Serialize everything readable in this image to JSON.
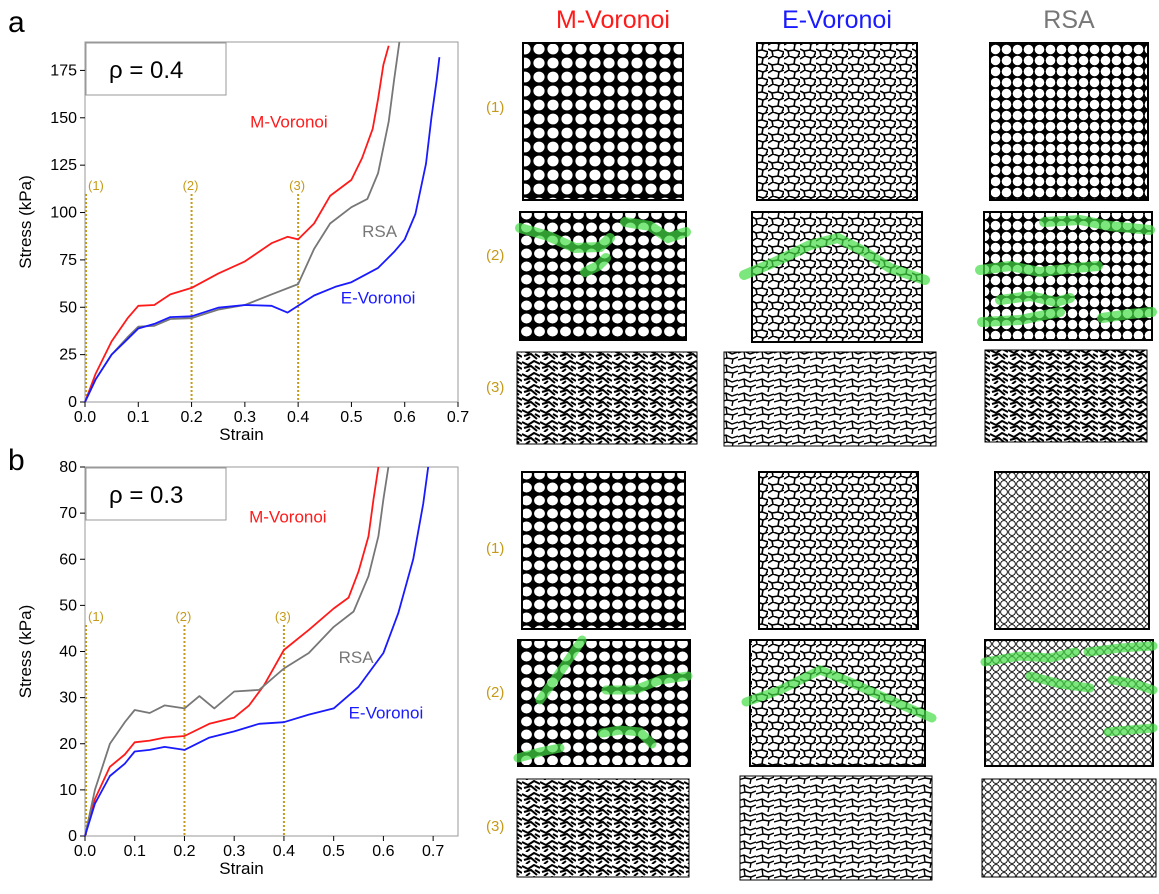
{
  "columns": [
    {
      "title": "M-Voronoi",
      "color": "#ff1a1a"
    },
    {
      "title": "E-Voronoi",
      "color": "#1a1aff"
    },
    {
      "title": "RSA",
      "color": "#777777"
    }
  ],
  "row_labels": [
    "(1)",
    "(2)",
    "(3)"
  ],
  "chart_data": [
    {
      "panel": "a",
      "type": "line",
      "annotation": "ρ = 0.4",
      "xlabel": "Strain",
      "ylabel": "Stress (kPa)",
      "xlim": [
        0,
        0.7
      ],
      "ylim": [
        0,
        190
      ],
      "xticks": [
        "0.0",
        "0.1",
        "0.2",
        "0.3",
        "0.4",
        "0.5",
        "0.6",
        "0.7"
      ],
      "yticks": [
        "0",
        "25",
        "50",
        "75",
        "100",
        "125",
        "150",
        "175"
      ],
      "markers": [
        {
          "x": 0.0,
          "label": "(1)"
        },
        {
          "x": 0.2,
          "label": "(2)"
        },
        {
          "x": 0.4,
          "label": "(3)"
        }
      ],
      "series": [
        {
          "name": "M-Voronoi",
          "color": "#ff1a1a",
          "x": [
            0,
            0.02,
            0.05,
            0.08,
            0.1,
            0.13,
            0.16,
            0.2,
            0.25,
            0.3,
            0.35,
            0.38,
            0.4,
            0.43,
            0.46,
            0.5,
            0.52,
            0.54,
            0.55,
            0.56,
            0.57
          ],
          "y": [
            0,
            15,
            32,
            45,
            50,
            52,
            56,
            61,
            67,
            75,
            83,
            88,
            85,
            95,
            108,
            118,
            128,
            145,
            160,
            178,
            188
          ]
        },
        {
          "name": "RSA",
          "color": "#777777",
          "x": [
            0,
            0.02,
            0.05,
            0.08,
            0.1,
            0.13,
            0.16,
            0.2,
            0.25,
            0.3,
            0.35,
            0.4,
            0.43,
            0.46,
            0.5,
            0.53,
            0.55,
            0.57,
            0.58,
            0.59
          ],
          "y": [
            0,
            12,
            25,
            35,
            39,
            41,
            43,
            45,
            48,
            52,
            56,
            63,
            80,
            95,
            102,
            108,
            120,
            148,
            170,
            190
          ]
        },
        {
          "name": "E-Voronoi",
          "color": "#1a1aff",
          "x": [
            0,
            0.02,
            0.05,
            0.08,
            0.1,
            0.13,
            0.16,
            0.2,
            0.25,
            0.3,
            0.35,
            0.38,
            0.4,
            0.43,
            0.47,
            0.5,
            0.55,
            0.58,
            0.6,
            0.62,
            0.64,
            0.65,
            0.66,
            0.665
          ],
          "y": [
            0,
            12,
            25,
            34,
            38,
            42,
            44,
            46,
            49,
            52,
            50,
            48,
            50,
            57,
            60,
            64,
            70,
            80,
            85,
            100,
            125,
            150,
            170,
            182
          ]
        }
      ],
      "series_labels": [
        {
          "name": "M-Voronoi",
          "x": 0.31,
          "y": 145
        },
        {
          "name": "RSA",
          "x": 0.52,
          "y": 87
        },
        {
          "name": "E-Voronoi",
          "x": 0.48,
          "y": 52
        }
      ]
    },
    {
      "panel": "b",
      "type": "line",
      "annotation": "ρ = 0.3",
      "xlabel": "Strain",
      "ylabel": "Stress (kPa)",
      "xlim": [
        0,
        0.75
      ],
      "ylim": [
        0,
        80
      ],
      "xticks": [
        "0.0",
        "0.1",
        "0.2",
        "0.3",
        "0.4",
        "0.5",
        "0.6",
        "0.7"
      ],
      "yticks": [
        "0",
        "10",
        "20",
        "30",
        "40",
        "50",
        "60",
        "70",
        "80"
      ],
      "markers": [
        {
          "x": 0.0,
          "label": "(1)"
        },
        {
          "x": 0.2,
          "label": "(2)"
        },
        {
          "x": 0.4,
          "label": "(3)"
        }
      ],
      "series": [
        {
          "name": "M-Voronoi",
          "color": "#ff1a1a",
          "x": [
            0,
            0.02,
            0.05,
            0.08,
            0.1,
            0.13,
            0.16,
            0.2,
            0.25,
            0.3,
            0.33,
            0.36,
            0.4,
            0.45,
            0.5,
            0.53,
            0.55,
            0.57,
            0.58,
            0.59
          ],
          "y": [
            0,
            8,
            15,
            18,
            20,
            21,
            21,
            22,
            24,
            26,
            28,
            33,
            40,
            45,
            49,
            52,
            57,
            65,
            73,
            80
          ]
        },
        {
          "name": "RSA",
          "color": "#777777",
          "x": [
            0,
            0.02,
            0.05,
            0.08,
            0.1,
            0.13,
            0.16,
            0.2,
            0.23,
            0.26,
            0.3,
            0.35,
            0.4,
            0.45,
            0.5,
            0.54,
            0.57,
            0.59,
            0.6,
            0.61
          ],
          "y": [
            0,
            10,
            20,
            25,
            27,
            27,
            28,
            28,
            30,
            28,
            31,
            32,
            36,
            40,
            45,
            49,
            56,
            65,
            73,
            80
          ]
        },
        {
          "name": "E-Voronoi",
          "color": "#1a1aff",
          "x": [
            0,
            0.02,
            0.05,
            0.08,
            0.1,
            0.13,
            0.16,
            0.2,
            0.25,
            0.3,
            0.35,
            0.4,
            0.45,
            0.5,
            0.55,
            0.6,
            0.63,
            0.66,
            0.68,
            0.69
          ],
          "y": [
            0,
            7,
            13,
            16,
            18,
            19,
            19,
            19,
            21,
            23,
            24,
            25,
            26,
            28,
            32,
            40,
            48,
            60,
            72,
            80
          ]
        }
      ],
      "series_labels": [
        {
          "name": "M-Voronoi",
          "x": 0.33,
          "y": 68
        },
        {
          "name": "RSA",
          "x": 0.51,
          "y": 37.5
        },
        {
          "name": "E-Voronoi",
          "x": 0.53,
          "y": 25.5
        }
      ]
    }
  ]
}
